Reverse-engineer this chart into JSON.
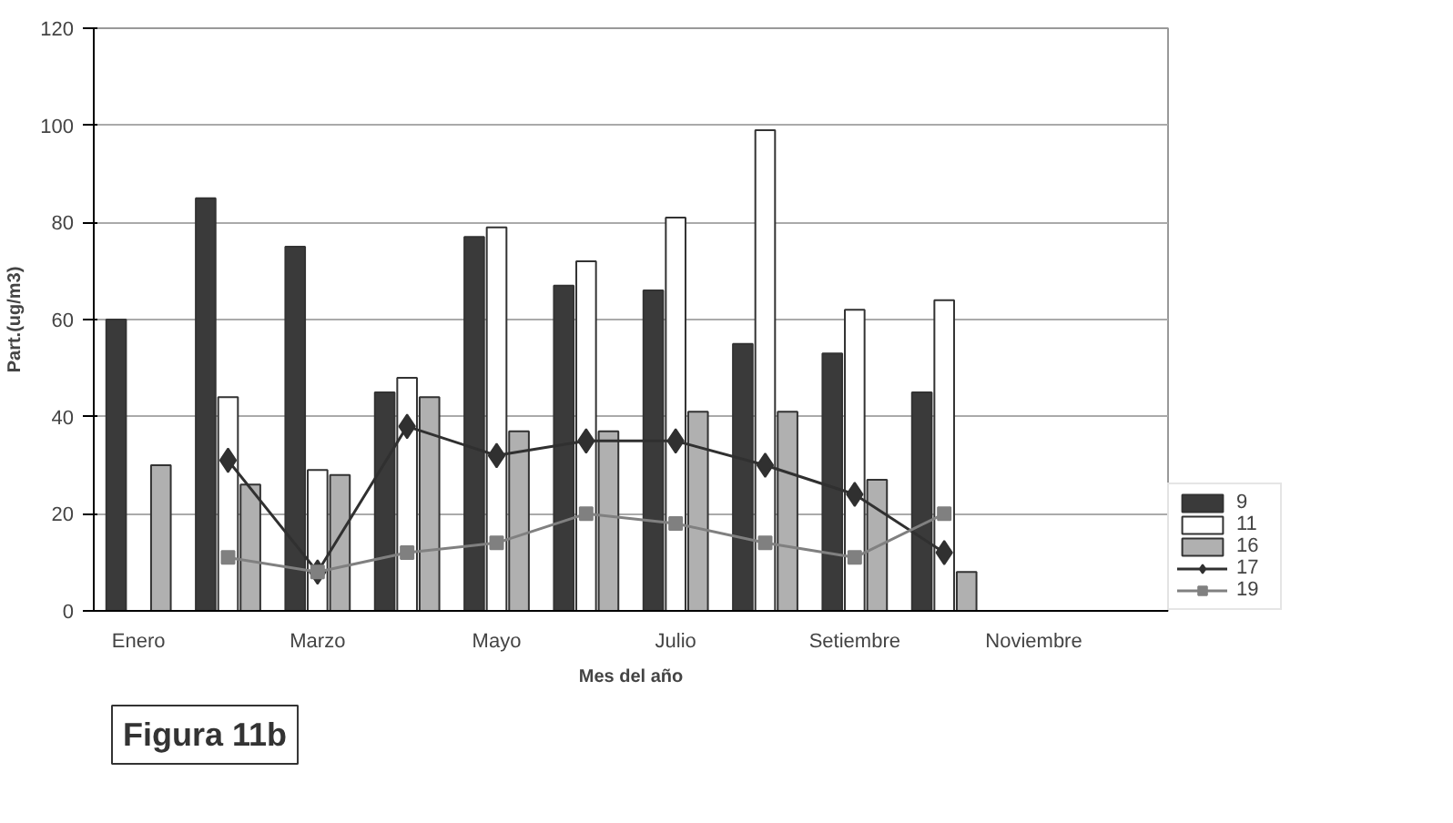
{
  "chart_data": {
    "type": "bar",
    "xlabel": "Mes del año",
    "ylabel": "Part.(ug/m3)",
    "categories": [
      "Enero",
      null,
      "Marzo",
      null,
      "Mayo",
      null,
      "Julio",
      null,
      "Setiembre",
      null,
      "Noviembre",
      null
    ],
    "series": [
      {
        "name": "9",
        "color": "#3a3a3a",
        "values": [
          60,
          85,
          75,
          45,
          77,
          67,
          66,
          55,
          53,
          45,
          null,
          null
        ]
      },
      {
        "name": "11",
        "color": "#ffffff",
        "values": [
          null,
          44,
          29,
          48,
          79,
          72,
          81,
          99,
          62,
          64,
          null,
          null
        ]
      },
      {
        "name": "16",
        "color": "#b0b0b0",
        "values": [
          30,
          26,
          28,
          44,
          37,
          37,
          41,
          41,
          27,
          8,
          null,
          null
        ]
      },
      {
        "name": "17",
        "type": "line",
        "color": "#303030",
        "marker": "diamond",
        "values": [
          null,
          31,
          8,
          38,
          32,
          35,
          35,
          30,
          24,
          12,
          null,
          null
        ]
      },
      {
        "name": "19",
        "type": "line",
        "color": "#808080",
        "marker": "square",
        "values": [
          null,
          11,
          8,
          12,
          14,
          20,
          18,
          14,
          11,
          20,
          null,
          null
        ]
      }
    ],
    "ylim": [
      0,
      120
    ],
    "yticks": [
      0,
      20,
      40,
      60,
      80,
      100,
      120
    ],
    "grid": "y",
    "legend": "right",
    "annotations": [
      "Figura 11b"
    ]
  }
}
